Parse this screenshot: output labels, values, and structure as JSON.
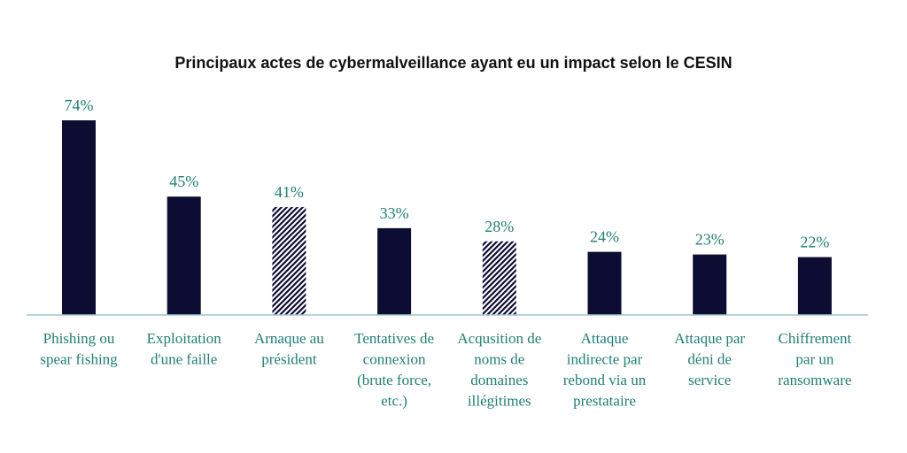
{
  "chart_data": {
    "type": "bar",
    "title": "Principaux actes de cybermalveillance ayant eu un impact selon le CESIN",
    "categories": [
      [
        "Phishing ou",
        "spear fishing"
      ],
      [
        "Exploitation",
        "d'une faille"
      ],
      [
        "Arnaque au",
        "président"
      ],
      [
        "Tentatives de",
        "connexion",
        "(brute force,",
        "etc.)"
      ],
      [
        "Acqusition de",
        "noms de",
        "domaines",
        "illégitimes"
      ],
      [
        "Attaque",
        "indirecte par",
        "rebond via un",
        "prestataire"
      ],
      [
        "Attaque par",
        "déni de",
        "service"
      ],
      [
        "Chiffrement",
        "par un",
        "ransomware"
      ]
    ],
    "values": [
      74,
      45,
      41,
      33,
      28,
      24,
      23,
      22
    ],
    "value_labels": [
      "74%",
      "45%",
      "41%",
      "33%",
      "28%",
      "24%",
      "23%",
      "22%"
    ],
    "fill_styles": [
      "solid",
      "solid",
      "hatched",
      "solid",
      "hatched",
      "solid",
      "solid",
      "solid"
    ],
    "ylim": [
      0,
      80
    ],
    "grid": false,
    "colors": {
      "bar": "#0d0c33",
      "text": "#1f7f73",
      "axis": "#9ec5cf",
      "title": "#111111"
    }
  }
}
